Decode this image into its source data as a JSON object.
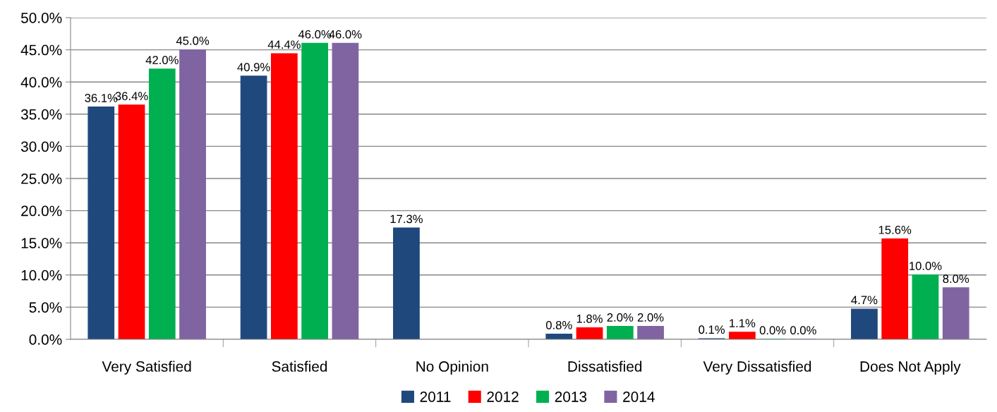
{
  "chart_data": {
    "type": "bar",
    "categories": [
      "Very Satisfied",
      "Satisfied",
      "No Opinion",
      "Dissatisfied",
      "Very Dissatisfied",
      "Does Not Apply"
    ],
    "series": [
      {
        "name": "2011",
        "color": "#1f497d",
        "values": [
          36.1,
          40.9,
          17.3,
          0.8,
          0.1,
          4.7
        ],
        "value_labels": [
          "36.1%",
          "40.9%",
          "17.3%",
          "0.8%",
          "0.1%",
          "4.7%"
        ]
      },
      {
        "name": "2012",
        "color": "#ff0000",
        "values": [
          36.4,
          44.4,
          null,
          1.8,
          1.1,
          15.6
        ],
        "value_labels": [
          "36.4%",
          "44.4%",
          null,
          "1.8%",
          "1.1%",
          "15.6%"
        ]
      },
      {
        "name": "2013",
        "color": "#00b050",
        "values": [
          42.0,
          46.0,
          null,
          2.0,
          0.0,
          10.0
        ],
        "value_labels": [
          "42.0%",
          "46.0%",
          null,
          "2.0%",
          "0.0%",
          "10.0%"
        ]
      },
      {
        "name": "2014",
        "color": "#8064a2",
        "values": [
          45.0,
          46.0,
          null,
          2.0,
          0.0,
          8.0
        ],
        "value_labels": [
          "45.0%",
          "46.0%",
          null,
          "2.0%",
          "0.0%",
          "8.0%"
        ]
      }
    ],
    "ylim": [
      0,
      50
    ],
    "yticks": [
      {
        "value": 0,
        "label": "0.0%"
      },
      {
        "value": 5,
        "label": "5.0%"
      },
      {
        "value": 10,
        "label": "10.0%"
      },
      {
        "value": 15,
        "label": "15.0%"
      },
      {
        "value": 20,
        "label": "20.0%"
      },
      {
        "value": 25,
        "label": "25.0%"
      },
      {
        "value": 30,
        "label": "30.0%"
      },
      {
        "value": 35,
        "label": "35.0%"
      },
      {
        "value": 40,
        "label": "40.0%"
      },
      {
        "value": 45,
        "label": "45.0%"
      },
      {
        "value": 50,
        "label": "50.0%"
      }
    ],
    "grid": "y",
    "legend": "bottom"
  }
}
